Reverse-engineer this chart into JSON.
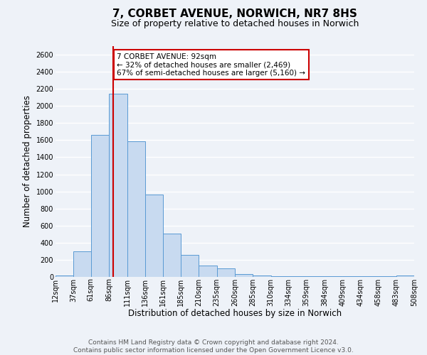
{
  "title": "7, CORBET AVENUE, NORWICH, NR7 8HS",
  "subtitle": "Size of property relative to detached houses in Norwich",
  "xlabel": "Distribution of detached houses by size in Norwich",
  "ylabel": "Number of detached properties",
  "bar_left_edges": [
    12,
    37,
    61,
    86,
    111,
    136,
    161,
    185,
    210,
    235,
    260,
    285,
    310,
    334,
    359,
    384,
    409,
    434,
    458,
    483
  ],
  "bar_heights": [
    20,
    295,
    1660,
    2140,
    1590,
    960,
    510,
    255,
    130,
    100,
    35,
    20,
    5,
    5,
    5,
    5,
    5,
    5,
    5,
    20
  ],
  "tick_labels": [
    "12sqm",
    "37sqm",
    "61sqm",
    "86sqm",
    "111sqm",
    "136sqm",
    "161sqm",
    "185sqm",
    "210sqm",
    "235sqm",
    "260sqm",
    "285sqm",
    "310sqm",
    "334sqm",
    "359sqm",
    "384sqm",
    "409sqm",
    "434sqm",
    "458sqm",
    "483sqm",
    "508sqm"
  ],
  "bar_color": "#c8daf0",
  "bar_edge_color": "#5a9ad4",
  "vline_x": 92,
  "vline_color": "#cc0000",
  "annotation_line1": "7 CORBET AVENUE: 92sqm",
  "annotation_line2": "← 32% of detached houses are smaller (2,469)",
  "annotation_line3": "67% of semi-detached houses are larger (5,160) →",
  "annotation_box_color": "#ffffff",
  "annotation_box_edge": "#cc0000",
  "ylim": [
    0,
    2700
  ],
  "yticks": [
    0,
    200,
    400,
    600,
    800,
    1000,
    1200,
    1400,
    1600,
    1800,
    2000,
    2200,
    2400,
    2600
  ],
  "footer_line1": "Contains HM Land Registry data © Crown copyright and database right 2024.",
  "footer_line2": "Contains public sector information licensed under the Open Government Licence v3.0.",
  "background_color": "#eef2f8",
  "grid_color": "#ffffff",
  "title_fontsize": 11,
  "subtitle_fontsize": 9,
  "axis_label_fontsize": 8.5,
  "tick_fontsize": 7,
  "annotation_fontsize": 7.5,
  "footer_fontsize": 6.5
}
